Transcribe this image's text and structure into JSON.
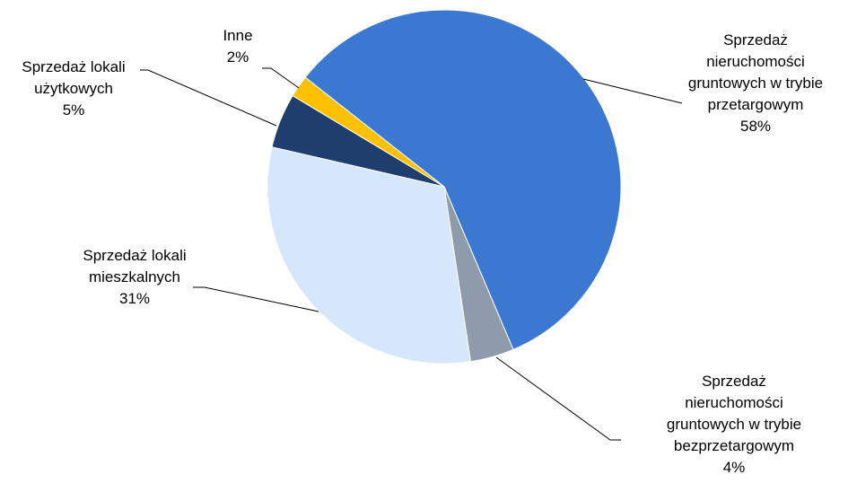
{
  "chart_data": {
    "type": "pie",
    "categories": [
      "Sprzedaż nieruchomości gruntowych w trybie przetargowym",
      "Sprzedaż nieruchomości gruntowych w trybie bezprzetargowym",
      "Sprzedaż lokali mieszkalnych",
      "Sprzedaż lokali użytkowych",
      "Inne"
    ],
    "values": [
      58,
      4,
      31,
      5,
      2
    ],
    "value_labels": [
      "58%",
      "4%",
      "31%",
      "5%",
      "2%"
    ],
    "colors": [
      "#3a78d2",
      "#8d9bab",
      "#d7e7fb",
      "#1f3e6e",
      "#ffc000"
    ]
  }
}
